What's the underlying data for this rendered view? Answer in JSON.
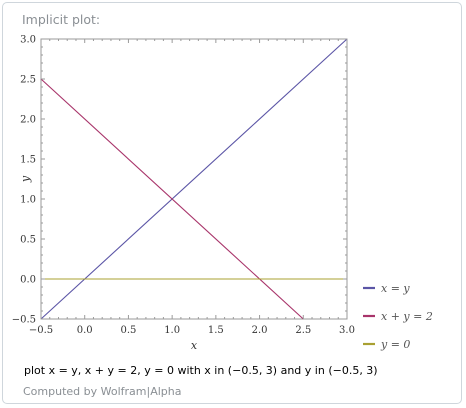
{
  "pod": {
    "title": "Implicit plot:",
    "caption": "plot x = y, x + y = 2, y = 0 with x in (−0.5, 3) and y in (−0.5, 3)",
    "credit": "Computed by Wolfram|Alpha"
  },
  "chart_data": {
    "type": "line",
    "title": "",
    "xlabel": "x",
    "ylabel": "y",
    "xlim": [
      -0.5,
      3.0
    ],
    "ylim": [
      -0.5,
      3.0
    ],
    "x_ticks": [
      "−0.5",
      "0.0",
      "0.5",
      "1.0",
      "1.5",
      "2.0",
      "2.5",
      "3.0"
    ],
    "y_ticks": [
      "−0.5",
      "0.0",
      "0.5",
      "1.0",
      "1.5",
      "2.0",
      "2.5",
      "3.0"
    ],
    "grid": false,
    "legend_position": "right",
    "series": [
      {
        "name": "x = y",
        "color": "#5b55a6",
        "points": [
          [
            -0.5,
            -0.5
          ],
          [
            3.0,
            3.0
          ]
        ]
      },
      {
        "name": "x + y = 2",
        "color": "#a8346a",
        "points": [
          [
            -0.5,
            2.5
          ],
          [
            2.5,
            -0.5
          ]
        ]
      },
      {
        "name": "y = 0",
        "color": "#a9a032",
        "points": [
          [
            -0.5,
            0.0
          ],
          [
            3.0,
            0.0
          ]
        ]
      }
    ]
  }
}
